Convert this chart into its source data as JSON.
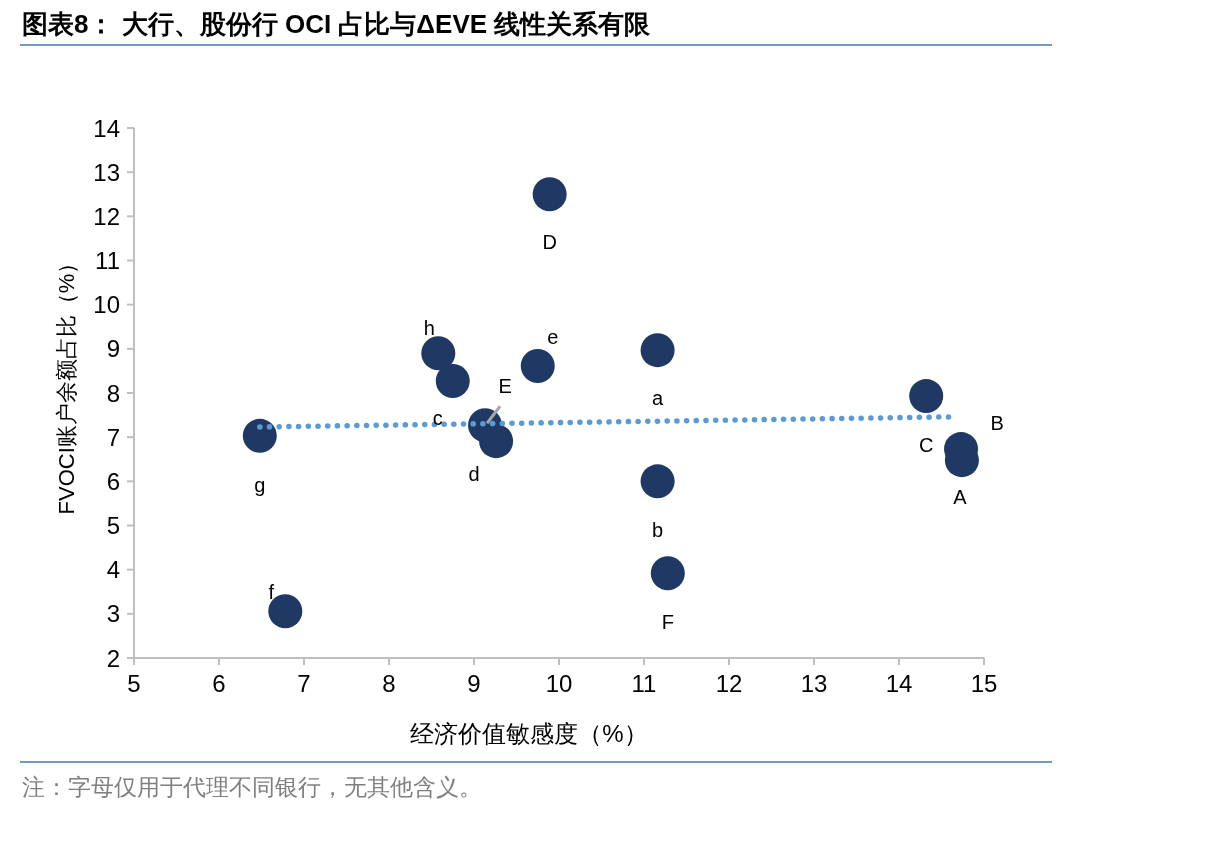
{
  "chart_data": {
    "type": "scatter",
    "title": "图表8： 大行、股份行 OCI 占比与ΔEVE 线性关系有限",
    "xlabel": "经济价值敏感度（%）",
    "ylabel": "FVOCI账户余额占比（%）",
    "xlim": [
      5,
      15
    ],
    "xticks": [
      5,
      6,
      7,
      8,
      9,
      10,
      11,
      12,
      13,
      14,
      15
    ],
    "ylim": [
      2,
      14
    ],
    "yticks": [
      2,
      3,
      4,
      5,
      6,
      7,
      8,
      9,
      10,
      11,
      12,
      13,
      14
    ],
    "series": [
      {
        "marker": "circle",
        "color": "#1f3864",
        "x": [
          9.89,
          8.58,
          8.75,
          9.75,
          9.13,
          9.26,
          11.16,
          11.16,
          11.28,
          14.32,
          14.73,
          14.74,
          6.48,
          6.78
        ],
        "values": [
          12.5,
          8.9,
          8.27,
          8.61,
          7.27,
          6.91,
          8.97,
          6.0,
          3.92,
          7.93,
          6.73,
          6.48,
          7.03,
          3.06
        ]
      },
      {
        "type": "line",
        "color": "#5b9bd5",
        "line_style": "dotted",
        "x": [
          6.48,
          14.61
        ],
        "values": [
          7.23,
          7.46
        ]
      }
    ],
    "annotations": [
      {
        "text": "D",
        "x": 9.89,
        "y": 12.5
      },
      {
        "text": "h",
        "x": 8.58,
        "y": 8.9
      },
      {
        "text": "c",
        "x": 8.75,
        "y": 8.27
      },
      {
        "text": "e",
        "x": 9.75,
        "y": 8.61
      },
      {
        "text": "E",
        "x": 9.13,
        "y": 7.27
      },
      {
        "text": "d",
        "x": 9.26,
        "y": 6.91
      },
      {
        "text": "a",
        "x": 11.16,
        "y": 8.97
      },
      {
        "text": "b",
        "x": 11.16,
        "y": 6.0
      },
      {
        "text": "F",
        "x": 11.28,
        "y": 3.92
      },
      {
        "text": "C",
        "x": 14.32,
        "y": 7.93
      },
      {
        "text": "B",
        "x": 14.73,
        "y": 6.73
      },
      {
        "text": "A",
        "x": 14.74,
        "y": 6.48
      },
      {
        "text": "g",
        "x": 6.48,
        "y": 7.03
      },
      {
        "text": "f",
        "x": 6.78,
        "y": 3.06
      },
      "注：字母仅用于代理不同银行，无其他含义。"
    ]
  }
}
